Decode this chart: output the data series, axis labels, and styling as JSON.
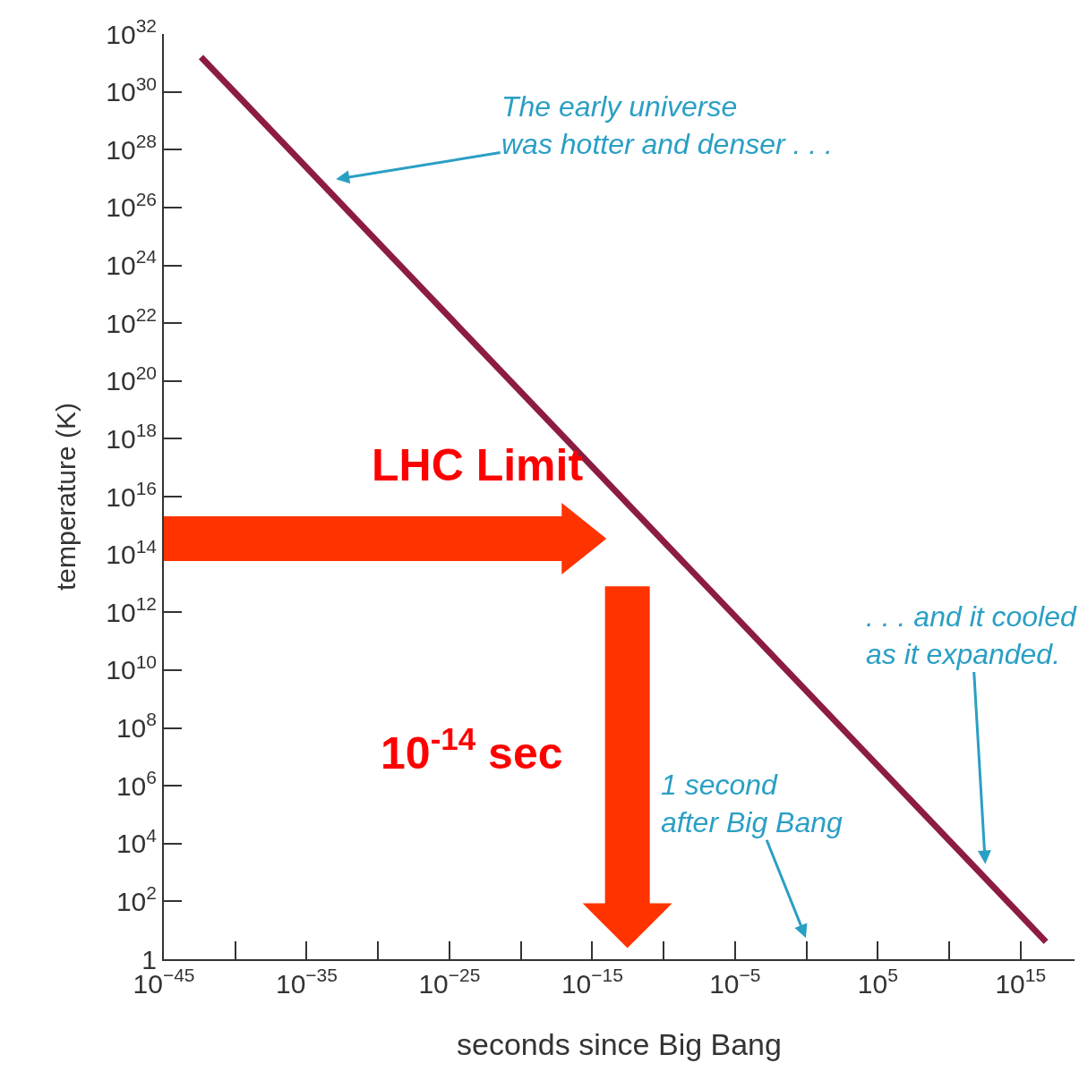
{
  "chart_data": {
    "type": "line",
    "xlabel": "seconds since Big Bang",
    "ylabel": "temperature (K)",
    "log": "xy",
    "marker": "none",
    "line_style": "solid",
    "series": [
      {
        "color": "#8c1d40",
        "x": [
          4e-43,
          6e+16
        ],
        "values": [
          1.6e+31,
          4
        ]
      }
    ],
    "xlim": [
      1e-45,
      6e+18
    ],
    "ylim": [
      1,
      1e+32
    ],
    "xticks": [
      {
        "value": 1e-45,
        "label": "10$^{−45}$"
      },
      {
        "value": 1e-35,
        "label": "10$^{−35}$"
      },
      {
        "value": 1e-25,
        "label": "10$^{−25}$"
      },
      {
        "value": 1e-15,
        "label": "10$^{−15}$"
      },
      {
        "value": 1e-05,
        "label": "10$^{−5}$"
      },
      {
        "value": 100000.0,
        "label": "10$^{5}$"
      },
      {
        "value": 1000000000000000.0,
        "label": "10$^{15}$"
      }
    ],
    "yticks": [
      {
        "value": 1,
        "label": "1"
      },
      {
        "value": 100.0,
        "label": "10$^{2}$"
      },
      {
        "value": 10000.0,
        "label": "10$^{4}$"
      },
      {
        "value": 1000000.0,
        "label": "10$^{6}$"
      },
      {
        "value": 100000000.0,
        "label": "10$^{8}$"
      },
      {
        "value": 10000000000.0,
        "label": "10$^{10}$"
      },
      {
        "value": 1000000000000.0,
        "label": "10$^{12}$"
      },
      {
        "value": 100000000000000.0,
        "label": "10$^{14}$"
      },
      {
        "value": 1e+16,
        "label": "10$^{16}$"
      },
      {
        "value": 1e+18,
        "label": "10$^{18}$"
      },
      {
        "value": 1e+20,
        "label": "10$^{20}$"
      },
      {
        "value": 1e+22,
        "label": "10$^{22}$"
      },
      {
        "value": 1e+24,
        "label": "10$^{24}$"
      },
      {
        "value": 1e+26,
        "label": "10$^{26}$"
      },
      {
        "value": 1e+28,
        "label": "10$^{28}$"
      },
      {
        "value": 1e+30,
        "label": "10$^{30}$"
      },
      {
        "value": 1e+32,
        "label": "10$^{32}$"
      }
    ],
    "annotations": [
      "The early universe\nwas hotter and denser . . .",
      ". . . and it cooled\nas it expanded.",
      "1 second\nafter Big Bang",
      "LHC Limit",
      "10$^{-14}$ sec"
    ]
  }
}
